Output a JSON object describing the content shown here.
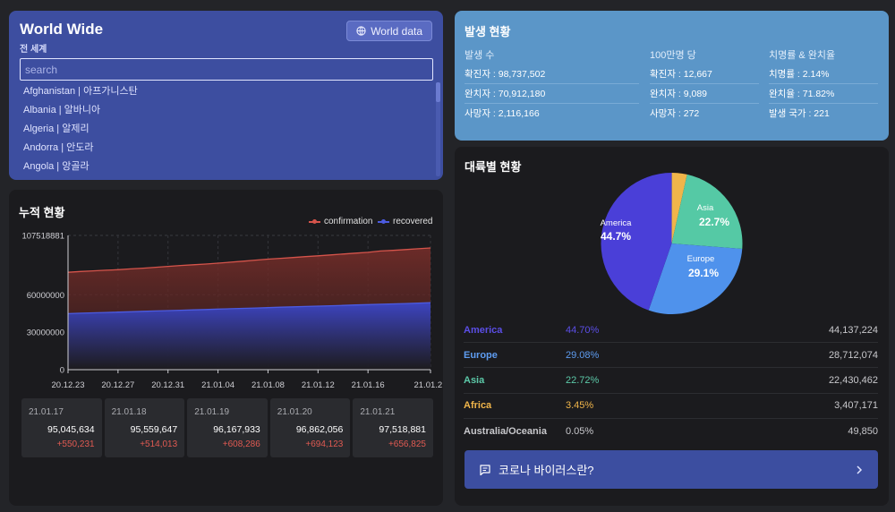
{
  "world": {
    "title": "World Wide",
    "subtitle": "전 세계",
    "button_label": "World data",
    "search_placeholder": "search",
    "countries": [
      "Afghanistan | 아프가니스탄",
      "Albania | 알바니아",
      "Algeria | 알제리",
      "Andorra | 안도라",
      "Angola | 앙골라"
    ]
  },
  "stats": {
    "title": "발생 현황",
    "columns": [
      {
        "header": "발생 수",
        "rows": [
          "확진자 : 98,737,502",
          "완치자 : 70,912,180",
          "사망자 : 2,116,166"
        ]
      },
      {
        "header": "100만명 당",
        "rows": [
          "확진자 : 12,667",
          "완치자 : 9,089",
          "사망자 : 272"
        ]
      },
      {
        "header": "치명률 & 완치율",
        "rows": [
          "치명률 : 2.14%",
          "완치율 : 71.82%",
          "발생 국가 : 221"
        ]
      }
    ]
  },
  "cumulative": {
    "title": "누적 현황",
    "legend": [
      "confirmation",
      "recovered"
    ],
    "daily": [
      {
        "date": "21.01.17",
        "total": "95,045,634",
        "new": "+550,231"
      },
      {
        "date": "21.01.18",
        "total": "95,559,647",
        "new": "+514,013"
      },
      {
        "date": "21.01.19",
        "total": "96,167,933",
        "new": "+608,286"
      },
      {
        "date": "21.01.20",
        "total": "96,862,056",
        "new": "+694,123"
      },
      {
        "date": "21.01.21",
        "total": "97,518,881",
        "new": "+656,825"
      }
    ]
  },
  "chart_data": [
    {
      "type": "area",
      "x": [
        "20.12.23",
        "20.12.24",
        "20.12.25",
        "20.12.26",
        "20.12.27",
        "20.12.28",
        "20.12.29",
        "20.12.30",
        "20.12.31",
        "21.01.01",
        "21.01.02",
        "21.01.03",
        "21.01.04",
        "21.01.05",
        "21.01.06",
        "21.01.07",
        "21.01.08",
        "21.01.09",
        "21.01.10",
        "21.01.11",
        "21.01.12",
        "21.01.13",
        "21.01.14",
        "21.01.15",
        "21.01.16",
        "21.01.17",
        "21.01.18",
        "21.01.19",
        "21.01.20",
        "21.01.21"
      ],
      "x_tick_labels": [
        "20.12.23",
        "20.12.27",
        "20.12.31",
        "21.01.04",
        "21.01.08",
        "21.01.12",
        "21.01.16",
        "21.01.21"
      ],
      "series": [
        {
          "name": "confirmation",
          "values": [
            78000000,
            78600000,
            79100000,
            79600000,
            80100000,
            80700000,
            81300000,
            82000000,
            82700000,
            83400000,
            84000000,
            84600000,
            85300000,
            86100000,
            86900000,
            87700000,
            88500000,
            89200000,
            89800000,
            90500000,
            91200000,
            91900000,
            92600000,
            93300000,
            94000000,
            95045634,
            95559647,
            96167933,
            96862056,
            97518881
          ]
        },
        {
          "name": "recovered",
          "values": [
            44900000,
            45200000,
            45500000,
            45800000,
            46100000,
            46400000,
            46700000,
            47000000,
            47300000,
            47600000,
            47900000,
            48200000,
            48500000,
            48800000,
            49100000,
            49400000,
            49700000,
            50000000,
            50300000,
            50600000,
            50900000,
            51200000,
            51500000,
            51800000,
            52100000,
            52400000,
            52700000,
            53000000,
            53300000,
            53600000
          ]
        }
      ],
      "y_ticks": [
        0,
        30000000,
        60000000,
        107518881
      ],
      "ylim": [
        0,
        107518881
      ],
      "legend_position": "top-right",
      "colors": {
        "confirmation": "#d5544b",
        "recovered": "#4c5be0"
      },
      "grid": true
    },
    {
      "type": "pie",
      "title": "대륙별 현황",
      "slices": [
        {
          "name": "America",
          "percent": 44.7,
          "color": "#4a3fd8"
        },
        {
          "name": "Europe",
          "percent": 29.1,
          "color": "#4f92ec"
        },
        {
          "name": "Asia",
          "percent": 22.7,
          "color": "#55c9a5"
        },
        {
          "name": "Africa",
          "percent": 3.45,
          "color": "#f0b54a"
        },
        {
          "name": "Australia/Oceania",
          "percent": 0.05,
          "color": "#cfcfd4"
        }
      ]
    }
  ],
  "continents": {
    "title": "대륙별 현황",
    "rows": [
      {
        "name": "America",
        "percent": "44.70%",
        "value": "44,137,224",
        "color": "#5b4ee6"
      },
      {
        "name": "Europe",
        "percent": "29.08%",
        "value": "28,712,074",
        "color": "#5e9cf0"
      },
      {
        "name": "Asia",
        "percent": "22.72%",
        "value": "22,430,462",
        "color": "#5cc9a8"
      },
      {
        "name": "Africa",
        "percent": "3.45%",
        "value": "3,407,171",
        "color": "#f0b54a"
      },
      {
        "name": "Australia/Oceania",
        "percent": "0.05%",
        "value": "49,850",
        "color": "#c8c8cc"
      }
    ],
    "pie_labels": [
      {
        "name": "America",
        "percent": "44.7%"
      },
      {
        "name": "Asia",
        "percent": "22.7%"
      },
      {
        "name": "Europe",
        "percent": "29.1%"
      }
    ],
    "button_label": "코로나 바이러스란?"
  }
}
